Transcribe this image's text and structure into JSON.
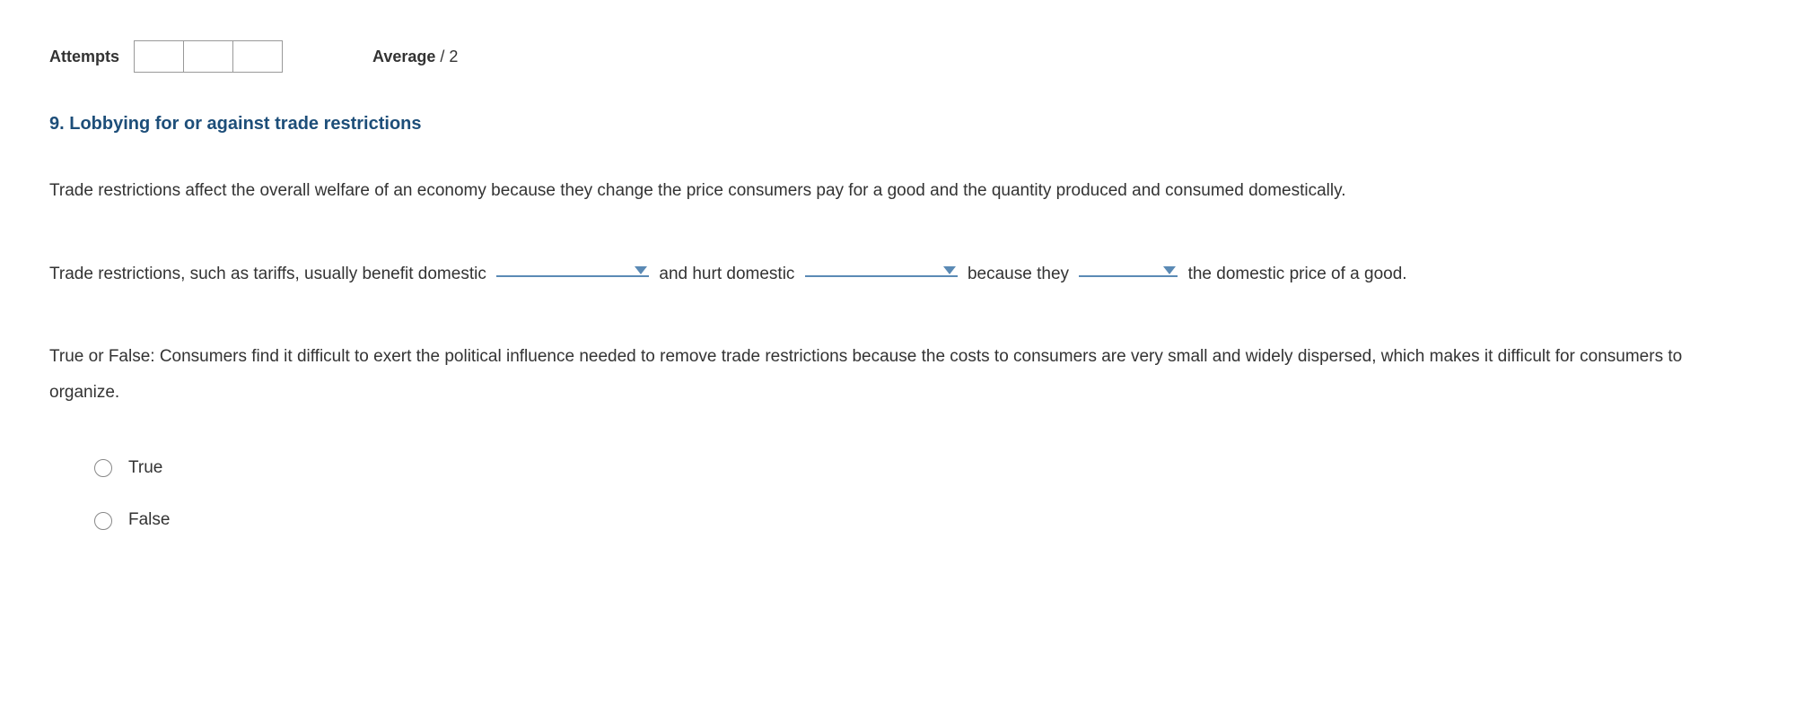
{
  "header": {
    "attempts_label": "Attempts",
    "average_label": "Average",
    "average_denominator": "/ 2"
  },
  "question": {
    "title": "9. Lobbying for or against trade restrictions",
    "intro": "Trade restrictions affect the overall welfare of an economy because they change the price consumers pay for a good and the quantity produced and consumed domestically.",
    "fill": {
      "seg1": "Trade restrictions, such as tariffs, usually benefit domestic ",
      "seg2": " and hurt domestic ",
      "seg3": " because they ",
      "seg4": " the domestic price of a good."
    },
    "tf_prompt": "True or False: Consumers find it difficult to exert the political influence needed to remove trade restrictions because the costs to consumers are very small and widely dispersed, which makes it difficult for consumers to organize.",
    "options": {
      "true": "True",
      "false": "False"
    }
  },
  "colors": {
    "title_color": "#1d4e79",
    "accent_color": "#5b8ab5",
    "text_color": "#333333",
    "border_color": "#999999"
  }
}
